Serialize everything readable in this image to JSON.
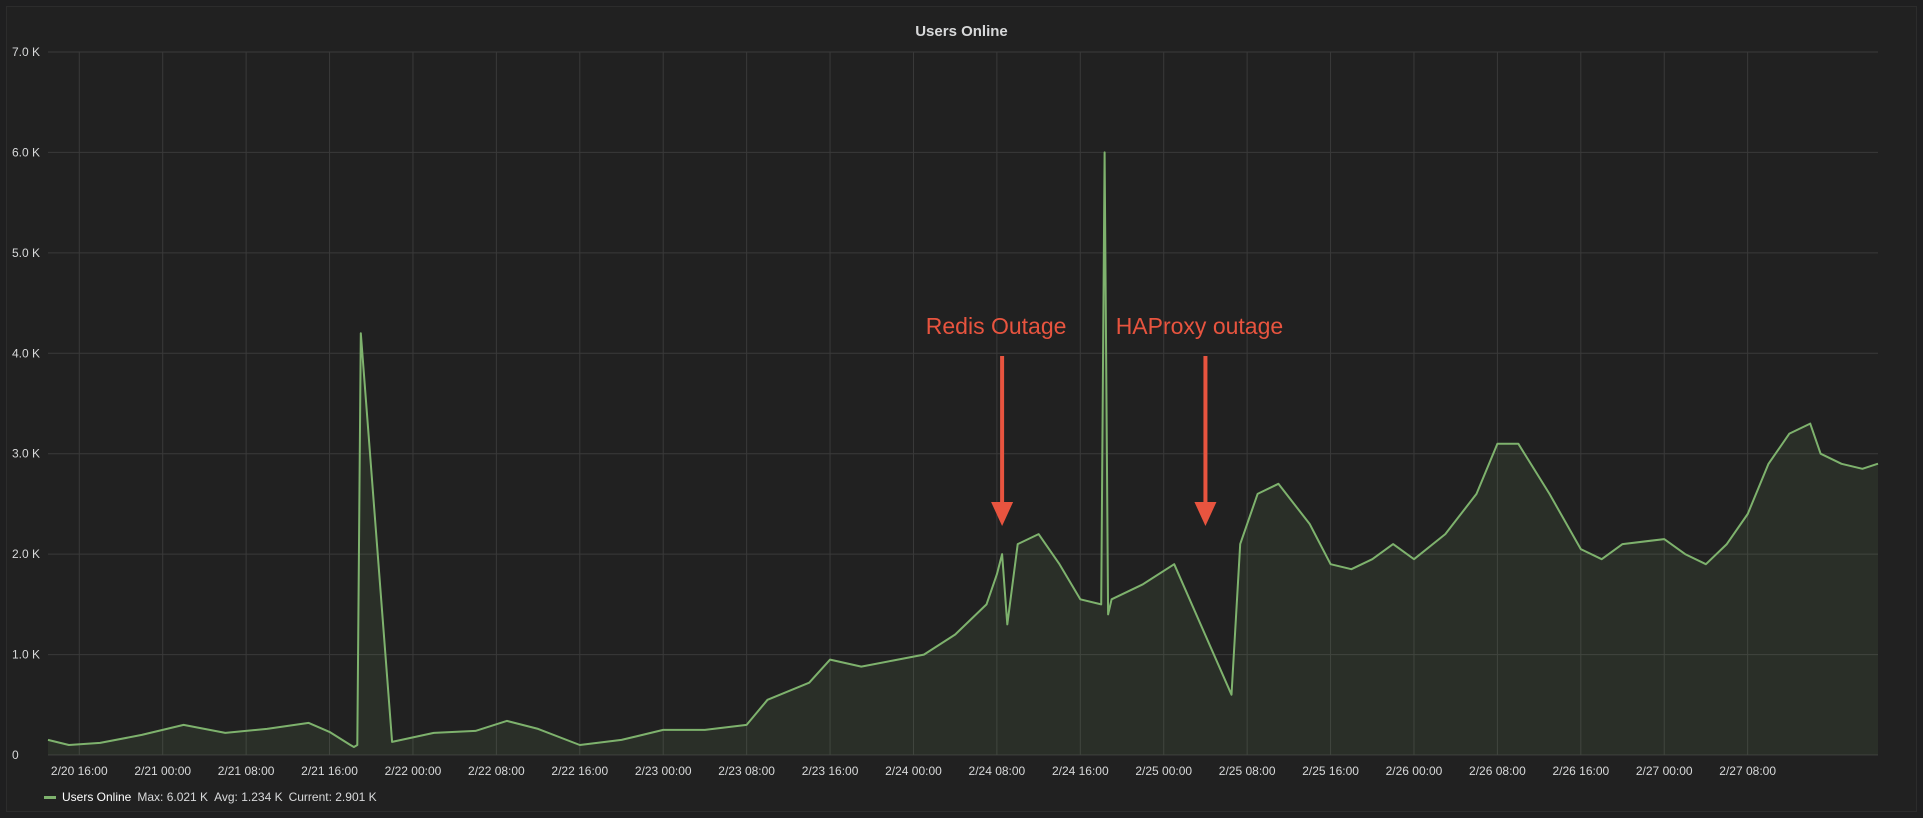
{
  "panel": {
    "title": "Users Online"
  },
  "legend": {
    "series_name": "Users Online",
    "max_text": "Max: 6.021 K",
    "avg_text": "Avg: 1.234 K",
    "current_text": "Current: 2.901 K"
  },
  "colors": {
    "series": "#7eb26d",
    "annotation": "#e8543f",
    "grid": "#3a3a3a",
    "background": "#212121"
  },
  "chart_data": {
    "type": "area",
    "title": "Users Online",
    "ylim": [
      0,
      7000
    ],
    "xlim": [
      "2/20 13:00",
      "2/27 20:30"
    ],
    "grid": true,
    "legend_position": "bottom-left",
    "y_ticks": [
      {
        "value": 0,
        "label": "0"
      },
      {
        "value": 1000,
        "label": "1.0 K"
      },
      {
        "value": 2000,
        "label": "2.0 K"
      },
      {
        "value": 3000,
        "label": "3.0 K"
      },
      {
        "value": 4000,
        "label": "4.0 K"
      },
      {
        "value": 5000,
        "label": "5.0 K"
      },
      {
        "value": 6000,
        "label": "6.0 K"
      },
      {
        "value": 7000,
        "label": "7.0 K"
      }
    ],
    "x_ticks": [
      "2/20 16:00",
      "2/21 00:00",
      "2/21 08:00",
      "2/21 16:00",
      "2/22 00:00",
      "2/22 08:00",
      "2/22 16:00",
      "2/23 00:00",
      "2/23 08:00",
      "2/23 16:00",
      "2/24 00:00",
      "2/24 08:00",
      "2/24 16:00",
      "2/25 00:00",
      "2/25 08:00",
      "2/25 16:00",
      "2/26 00:00",
      "2/26 08:00",
      "2/26 16:00",
      "2/27 00:00",
      "2/27 08:00"
    ],
    "series": [
      {
        "name": "Users Online",
        "x": [
          "2/20 13:00",
          "2/20 15:00",
          "2/20 18:00",
          "2/20 22:00",
          "2/21 02:00",
          "2/21 06:00",
          "2/21 10:00",
          "2/21 14:00",
          "2/21 16:00",
          "2/21 18:00",
          "2/21 18:20",
          "2/21 18:40",
          "2/21 19:00",
          "2/21 22:00",
          "2/22 02:00",
          "2/22 06:00",
          "2/22 09:00",
          "2/22 12:00",
          "2/22 16:00",
          "2/22 20:00",
          "2/23 00:00",
          "2/23 04:00",
          "2/23 08:00",
          "2/23 10:00",
          "2/23 14:00",
          "2/23 16:00",
          "2/23 19:00",
          "2/23 22:00",
          "2/24 01:00",
          "2/24 04:00",
          "2/24 07:00",
          "2/24 08:00",
          "2/24 08:30",
          "2/24 09:00",
          "2/24 10:00",
          "2/24 12:00",
          "2/24 14:00",
          "2/24 16:00",
          "2/24 18:00",
          "2/24 18:20",
          "2/24 18:40",
          "2/24 19:00",
          "2/24 22:00",
          "2/25 01:00",
          "2/25 06:30",
          "2/25 07:20",
          "2/25 09:00",
          "2/25 11:00",
          "2/25 14:00",
          "2/25 16:00",
          "2/25 18:00",
          "2/25 20:00",
          "2/25 22:00",
          "2/26 00:00",
          "2/26 03:00",
          "2/26 06:00",
          "2/26 08:00",
          "2/26 10:00",
          "2/26 13:00",
          "2/26 16:00",
          "2/26 18:00",
          "2/26 20:00",
          "2/27 00:00",
          "2/27 02:00",
          "2/27 04:00",
          "2/27 06:00",
          "2/27 08:00",
          "2/27 10:00",
          "2/27 12:00",
          "2/27 14:00",
          "2/27 15:00",
          "2/27 17:00",
          "2/27 19:00",
          "2/27 20:30"
        ],
        "values": [
          150,
          100,
          120,
          200,
          300,
          220,
          260,
          320,
          230,
          100,
          80,
          100,
          4200,
          130,
          220,
          240,
          340,
          260,
          100,
          150,
          250,
          250,
          300,
          550,
          720,
          950,
          880,
          940,
          1000,
          1200,
          1500,
          1800,
          2000,
          1300,
          2100,
          2200,
          1900,
          1550,
          1500,
          6000,
          1400,
          1550,
          1700,
          1900,
          600,
          2100,
          2600,
          2700,
          2300,
          1900,
          1850,
          1950,
          2100,
          1950,
          2200,
          2600,
          3100,
          3100,
          2600,
          2050,
          1950,
          2100,
          2150,
          2000,
          1900,
          2100,
          2400,
          2900,
          3200,
          3300,
          3000,
          2900,
          2850,
          2901
        ]
      }
    ],
    "annotations": [
      {
        "text": "Redis Outage",
        "x": "2/24 08:30",
        "y_arrow_tip": 2300
      },
      {
        "text": "HAProxy outage",
        "x": "2/25 04:00",
        "y_arrow_tip": 2300
      }
    ]
  }
}
